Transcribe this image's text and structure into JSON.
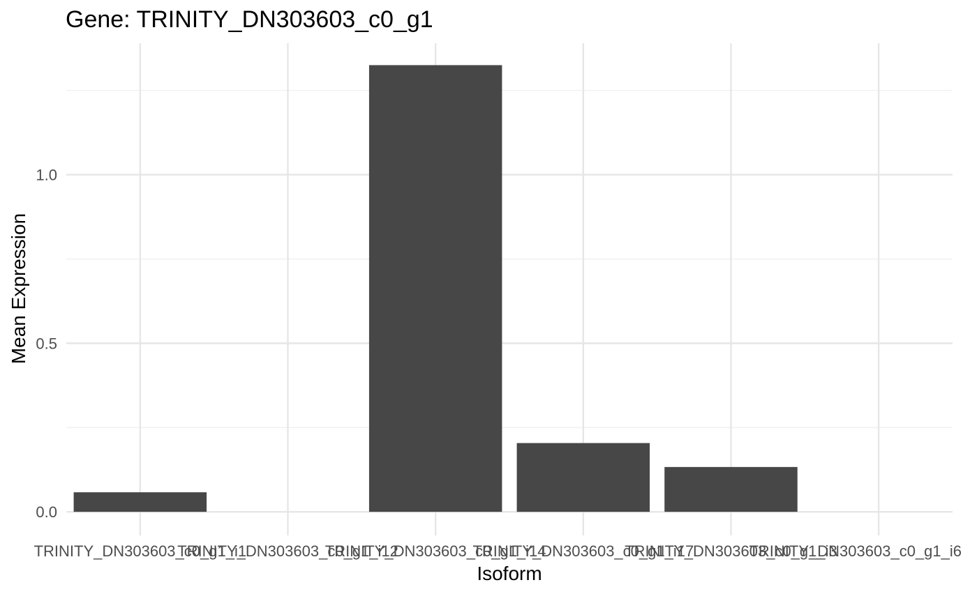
{
  "chart_data": {
    "type": "bar",
    "title": "Gene: TRINITY_DN303603_c0_g1",
    "xlabel": "Isoform",
    "ylabel": "Mean Expression",
    "categories": [
      "TRINITY_DN303603_c0_g1_i1",
      "TRINITY_DN303603_c0_g1_i12",
      "TRINITY_DN303603_c0_g1_i14",
      "TRINITY_DN303603_c0_g1_i17",
      "TRINITY_DN303603_c0_g1_i3",
      "TRINITY_DN303603_c0_g1_i6"
    ],
    "values": [
      0.058,
      0,
      1.325,
      0.204,
      0.133,
      0
    ],
    "ylim": [
      -0.07,
      1.39
    ],
    "yticks": [
      0.0,
      0.5,
      1.0
    ],
    "ytick_labels": [
      "0.0",
      "0.5",
      "1.0"
    ],
    "grid": true,
    "bar_color": "#474747",
    "grid_color": "#e6e6e6"
  }
}
